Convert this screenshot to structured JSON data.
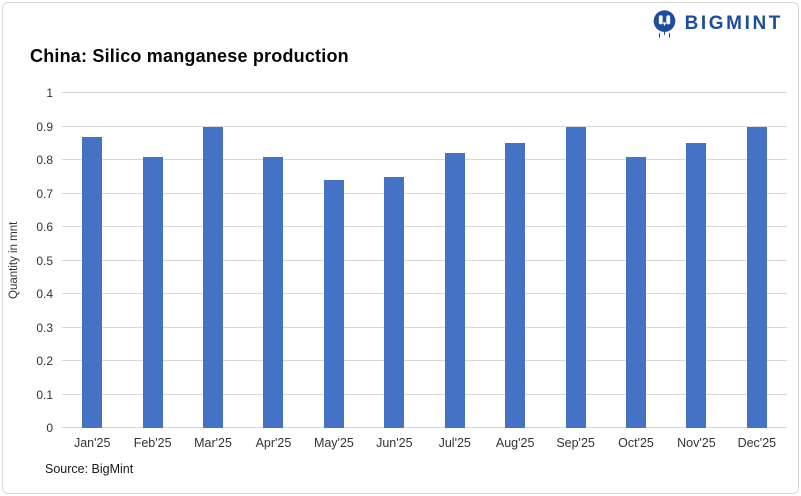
{
  "header": {
    "logo": {
      "text": "BIGMINT",
      "color": "#1d4e9e"
    }
  },
  "chart_data": {
    "type": "bar",
    "title": "China: Silico manganese production",
    "categories": [
      "Jan'25",
      "Feb'25",
      "Mar'25",
      "Apr'25",
      "May'25",
      "Jun'25",
      "Jul'25",
      "Aug'25",
      "Sep'25",
      "Oct'25",
      "Nov'25",
      "Dec'25"
    ],
    "values": [
      0.87,
      0.81,
      0.9,
      0.81,
      0.74,
      0.75,
      0.82,
      0.85,
      0.9,
      0.81,
      0.85,
      0.9
    ],
    "xlabel": "",
    "ylabel": "Quantity in mnt",
    "ylim": [
      0,
      1
    ],
    "yticks": [
      "0",
      "0.1",
      "0.2",
      "0.3",
      "0.4",
      "0.5",
      "0.6",
      "0.7",
      "0.8",
      "0.9",
      "1"
    ],
    "grid": true,
    "legend": false,
    "bar_color": "#4472C4",
    "gridline_color": "#d9d9d9"
  },
  "footer": {
    "source": "Source: BigMint"
  }
}
